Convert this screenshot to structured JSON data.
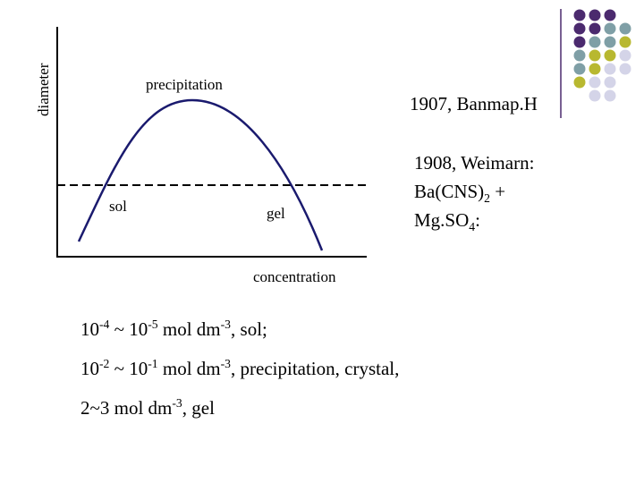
{
  "diagram": {
    "y_axis_label": "diameter",
    "x_axis_label": "concentration",
    "curve_label": "precipitation",
    "below_left_label": "sol",
    "below_right_label": "gel"
  },
  "notes": {
    "note_1907": [
      {
        "text": "1907, Banmap.H"
      }
    ],
    "note_1908": [
      [
        {
          "text": "1908, Weimarn:"
        }
      ],
      [
        {
          "text": "Ba(CNS)"
        },
        {
          "text": "2",
          "script": "sub"
        },
        {
          "text": " +"
        }
      ],
      [
        {
          "text": "Mg.SO"
        },
        {
          "text": "4",
          "script": "sub"
        },
        {
          "text": ":"
        }
      ]
    ]
  },
  "lines": [
    [
      {
        "text": "10"
      },
      {
        "text": "-4",
        "script": "sup"
      },
      {
        "text": " ~ 10"
      },
      {
        "text": "-5",
        "script": "sup"
      },
      {
        "text": " mol dm"
      },
      {
        "text": "-3",
        "script": "sup"
      },
      {
        "text": ", sol;"
      }
    ],
    [
      {
        "text": "10"
      },
      {
        "text": "-2",
        "script": "sup"
      },
      {
        "text": " ~ 10"
      },
      {
        "text": "-1",
        "script": "sup"
      },
      {
        "text": " mol dm"
      },
      {
        "text": "-3",
        "script": "sup"
      },
      {
        "text": ", precipitation, crystal,"
      }
    ],
    [
      {
        "text": "2~3 mol dm"
      },
      {
        "text": "-3",
        "script": "sup"
      },
      {
        "text": ", gel"
      }
    ]
  ]
}
